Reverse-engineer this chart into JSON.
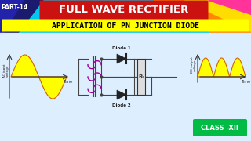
{
  "bg_color": "#00c8f0",
  "title_text": "FULL WAVE RECTIFIER",
  "title_bg": "#cc1111",
  "title_color": "#ffffff",
  "subtitle_text": "APPLICATION OF PN JUNCTION DIODE",
  "subtitle_bg": "#ffff00",
  "subtitle_color": "#000000",
  "part_text": "PART-14",
  "class_text": "CLASS -XII",
  "class_bg": "#00bb44",
  "class_color": "#ffffff",
  "diode1_label": "Diode 1",
  "diode2_label": "Diode 2",
  "rl_label": "Rₗ",
  "ac_label": "AC input\nvoltage",
  "dc_label": "DC output\nvoltage",
  "time_label": "Time",
  "wave_color": "#ffff00",
  "wave_edge": "#cc6600",
  "panel_bg": "#ddeeff",
  "wire_color": "#444444",
  "coil_color": "#990099",
  "core_color": "#444444",
  "diode_color": "#222222"
}
